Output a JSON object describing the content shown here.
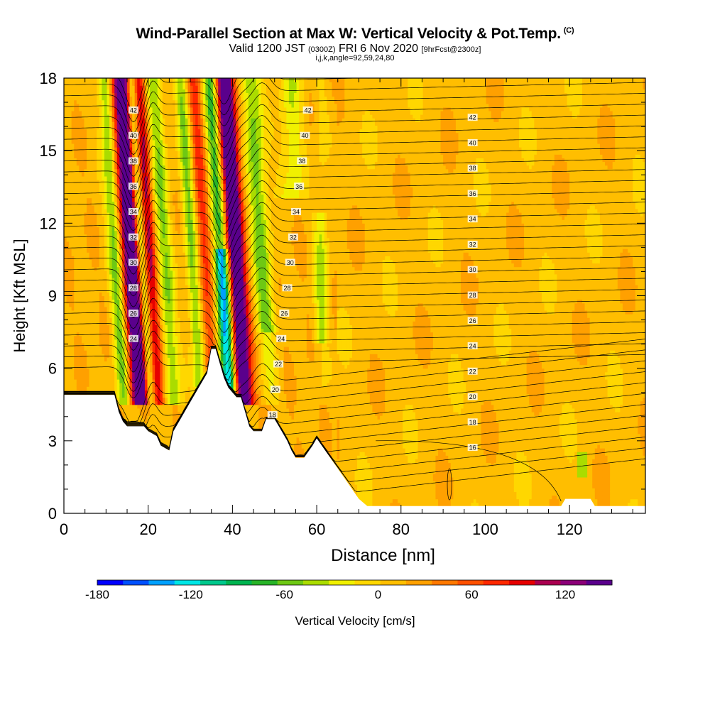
{
  "title": {
    "main": "Wind-Parallel Section at Max W: Vertical Velocity & Pot.Temp.",
    "main_tag": "(C)",
    "valid": "Valid 1200 JST",
    "valid_utc": "(0300Z)",
    "valid_date": "FRI 6 Nov 2020",
    "forecast": "[9hrFcst@2300z]",
    "indices": "i,j,k,angle=92,59,24,80"
  },
  "chart_data": {
    "type": "heatmap",
    "xlabel": "Distance [nm]",
    "ylabel": "Height [Kft MSL]",
    "xlim": [
      0,
      138
    ],
    "ylim": [
      0,
      18
    ],
    "x_ticks": [
      0,
      20,
      40,
      60,
      80,
      100,
      120
    ],
    "y_ticks": [
      0,
      3,
      6,
      9,
      12,
      15,
      18
    ],
    "colorbar": {
      "label": "Vertical Velocity [cm/s]",
      "range": [
        -180,
        150
      ],
      "tick_labels": [
        -180,
        -120,
        -60,
        0,
        60,
        120
      ],
      "colors": [
        "#0000ff",
        "#0050ff",
        "#00a0ff",
        "#00e6e6",
        "#00c88c",
        "#00b450",
        "#28b428",
        "#6ec814",
        "#aadc00",
        "#f0f000",
        "#ffd700",
        "#ffbe00",
        "#ffa000",
        "#ff7800",
        "#ff5000",
        "#ff2800",
        "#e60000",
        "#aa0050",
        "#8c0078",
        "#5a008c"
      ]
    },
    "isentropes_C": [
      16,
      18,
      20,
      22,
      24,
      26,
      28,
      30,
      32,
      34,
      36,
      38,
      40,
      42
    ],
    "updraft_bands_nm": [
      {
        "x": 17,
        "peak": "> 120"
      },
      {
        "x": 21,
        "peak": "~ 80"
      },
      {
        "x": 41,
        "peak": "> 120"
      }
    ],
    "downdraft_bands_nm": [
      {
        "x": 38,
        "peak": "~ -150"
      },
      {
        "x": 31,
        "peak": "~ -60"
      },
      {
        "x": 47,
        "peak": "~ -60"
      },
      {
        "x": 61,
        "peak": "~ -40"
      }
    ],
    "terrain_kft": [
      [
        0,
        4.9
      ],
      [
        6,
        4.9
      ],
      [
        12,
        4.9
      ],
      [
        13,
        4.2
      ],
      [
        14,
        3.8
      ],
      [
        15,
        3.6
      ],
      [
        17,
        3.6
      ],
      [
        19,
        3.6
      ],
      [
        20,
        3.4
      ],
      [
        22,
        3.2
      ],
      [
        23,
        2.8
      ],
      [
        25,
        2.6
      ],
      [
        26,
        3.4
      ],
      [
        28,
        4.0
      ],
      [
        30,
        4.6
      ],
      [
        32,
        5.2
      ],
      [
        34,
        5.8
      ],
      [
        35,
        6.8
      ],
      [
        36,
        6.8
      ],
      [
        37,
        6.2
      ],
      [
        38,
        5.6
      ],
      [
        39,
        5.2
      ],
      [
        40,
        5.0
      ],
      [
        41,
        4.8
      ],
      [
        42,
        4.8
      ],
      [
        43,
        4.2
      ],
      [
        44,
        3.6
      ],
      [
        45,
        3.4
      ],
      [
        47,
        3.4
      ],
      [
        48,
        3.9
      ],
      [
        50,
        3.9
      ],
      [
        51,
        3.6
      ],
      [
        53,
        3.0
      ],
      [
        54,
        2.6
      ],
      [
        55,
        2.3
      ],
      [
        57,
        2.3
      ],
      [
        59,
        2.8
      ],
      [
        60,
        3.1
      ],
      [
        62,
        2.6
      ],
      [
        64,
        2.1
      ],
      [
        66,
        1.6
      ],
      [
        68,
        1.1
      ],
      [
        70,
        0.6
      ],
      [
        72,
        0.3
      ],
      [
        73,
        0.3
      ],
      [
        80,
        0.3
      ],
      [
        90,
        0.3
      ],
      [
        100,
        0.3
      ],
      [
        110,
        0.3
      ],
      [
        118,
        0.3
      ],
      [
        119,
        0.6
      ],
      [
        125,
        0.6
      ],
      [
        126,
        0.3
      ],
      [
        138,
        0.3
      ]
    ]
  }
}
